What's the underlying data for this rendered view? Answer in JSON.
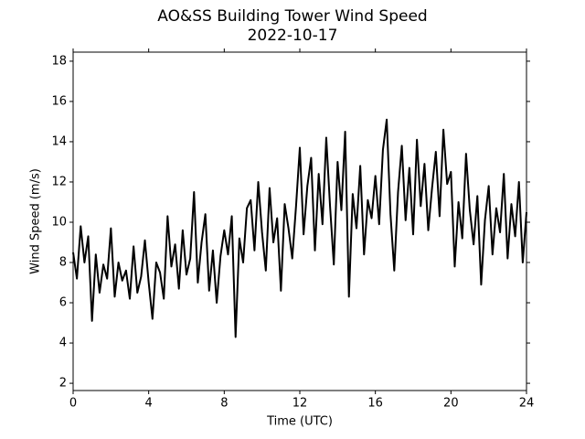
{
  "chart_data": {
    "type": "line",
    "title": "AO&SS Building Tower Wind Speed",
    "subtitle": "2022-10-17",
    "x_label": "Time (UTC)",
    "y_label": "Wind Speed (m/s)",
    "x": [
      0,
      0.2,
      0.4,
      0.6,
      0.8,
      1,
      1.2,
      1.4,
      1.6,
      1.8,
      2,
      2.2,
      2.4,
      2.6,
      2.8,
      3,
      3.2,
      3.4,
      3.6,
      3.8,
      4,
      4.2,
      4.4,
      4.6,
      4.8,
      5,
      5.2,
      5.4,
      5.6,
      5.8,
      6,
      6.2,
      6.4,
      6.6,
      6.8,
      7,
      7.2,
      7.4,
      7.6,
      7.8,
      8,
      8.2,
      8.4,
      8.6,
      8.8,
      9,
      9.2,
      9.4,
      9.6,
      9.8,
      10,
      10.2,
      10.4,
      10.6,
      10.8,
      11,
      11.2,
      11.4,
      11.6,
      11.8,
      12,
      12.2,
      12.4,
      12.6,
      12.8,
      13,
      13.2,
      13.4,
      13.6,
      13.8,
      14,
      14.2,
      14.4,
      14.6,
      14.8,
      15,
      15.2,
      15.4,
      15.6,
      15.8,
      16,
      16.2,
      16.4,
      16.6,
      16.8,
      17,
      17.2,
      17.4,
      17.6,
      17.8,
      18,
      18.2,
      18.4,
      18.6,
      18.8,
      19,
      19.2,
      19.4,
      19.6,
      19.8,
      20,
      20.2,
      20.4,
      20.6,
      20.8,
      21,
      21.2,
      21.4,
      21.6,
      21.8,
      22,
      22.2,
      22.4,
      22.6,
      22.8,
      23,
      23.2,
      23.4,
      23.6,
      23.8,
      24
    ],
    "series": [
      {
        "name": "Wind Speed",
        "color": "#000000",
        "values": [
          8.5,
          7.2,
          9.8,
          8.0,
          9.3,
          5.1,
          8.4,
          6.5,
          7.9,
          7.2,
          9.7,
          6.3,
          8.0,
          7.1,
          7.6,
          6.2,
          8.8,
          6.5,
          7.3,
          9.1,
          7.0,
          5.2,
          8.0,
          7.5,
          6.2,
          10.3,
          7.8,
          8.9,
          6.7,
          9.6,
          7.4,
          8.2,
          11.5,
          7.0,
          9.0,
          10.4,
          6.6,
          8.6,
          6.0,
          8.3,
          9.6,
          8.4,
          10.3,
          4.3,
          9.2,
          8.0,
          10.7,
          11.1,
          8.6,
          12.0,
          9.5,
          7.6,
          11.7,
          9.0,
          10.2,
          6.6,
          10.9,
          9.7,
          8.2,
          10.8,
          13.7,
          9.4,
          11.8,
          13.2,
          8.6,
          12.4,
          9.9,
          14.2,
          10.8,
          7.9,
          13.0,
          10.6,
          14.5,
          6.3,
          11.4,
          9.7,
          12.8,
          8.4,
          11.1,
          10.2,
          12.3,
          9.9,
          13.6,
          15.1,
          10.4,
          7.6,
          11.5,
          13.8,
          10.1,
          12.7,
          9.4,
          14.1,
          10.8,
          12.9,
          9.6,
          11.7,
          13.5,
          10.3,
          14.6,
          11.9,
          12.5,
          7.8,
          11.0,
          9.2,
          13.4,
          10.6,
          8.9,
          11.3,
          6.9,
          10.1,
          11.8,
          8.4,
          10.7,
          9.5,
          12.4,
          8.2,
          10.9,
          9.3,
          12.0,
          8.0,
          10.5
        ]
      }
    ],
    "xlim": [
      0,
      24
    ],
    "xticks": [
      0,
      4,
      8,
      12,
      16,
      20,
      24
    ],
    "ylim": [
      1.64,
      18.45
    ],
    "yticks": [
      2,
      4,
      6,
      8,
      10,
      12,
      14,
      16,
      18
    ]
  }
}
